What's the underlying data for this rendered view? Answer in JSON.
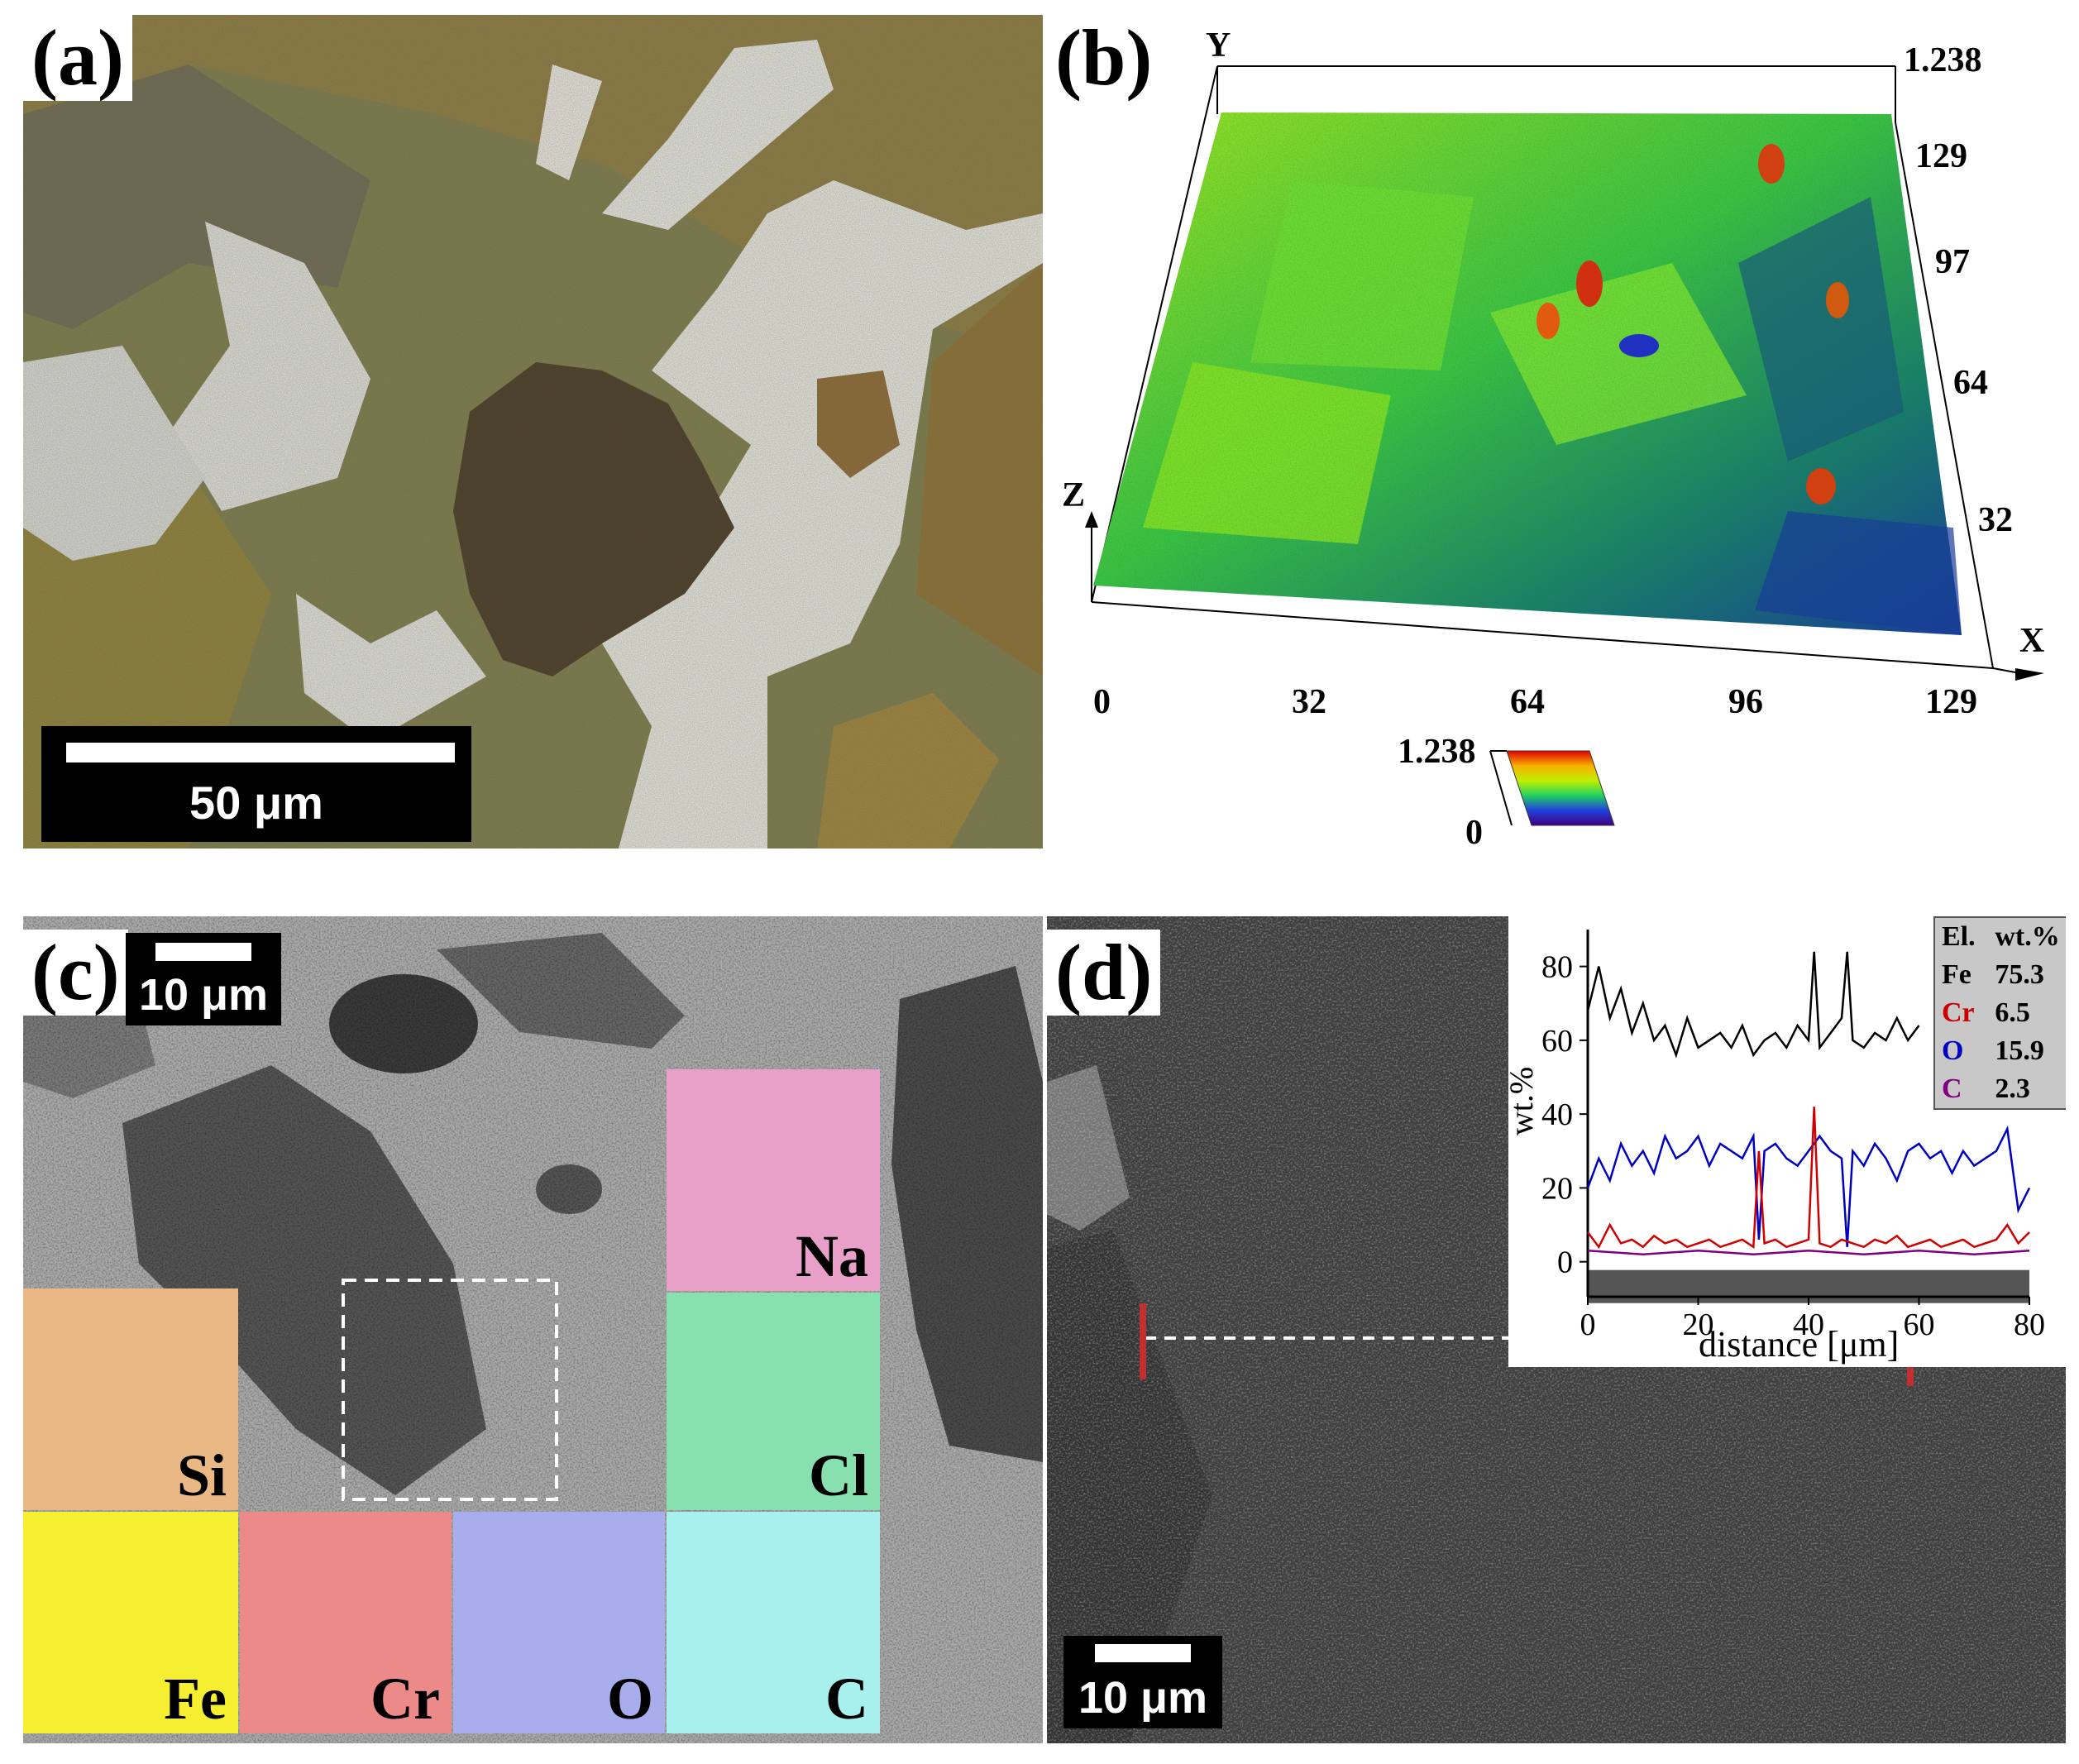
{
  "panels": {
    "a": {
      "label": "(a)",
      "scale_bar": "50 μm"
    },
    "b": {
      "label": "(b)",
      "axis_y_letter": "Y",
      "axis_z_letter": "Z",
      "axis_x_letter": "X",
      "top_value": "1.238",
      "x_ticks": [
        "0",
        "32",
        "64",
        "96",
        "129"
      ],
      "y_ticks": [
        "129",
        "97",
        "64",
        "32"
      ],
      "colorbar_max": "1.238",
      "colorbar_min": "0"
    },
    "c": {
      "label": "(c)",
      "scale_bar": "10 μm",
      "maps": [
        "Na",
        "Si",
        "Cl",
        "Fe",
        "Cr",
        "O",
        "C"
      ]
    },
    "d": {
      "label": "(d)",
      "scale_bar": "10 μm",
      "table": {
        "headers": [
          "El.",
          "wt.%"
        ],
        "rows": [
          {
            "element": "Fe",
            "value": "75.3",
            "color": "#000000"
          },
          {
            "element": "Cr",
            "value": "6.5",
            "color": "#d00000"
          },
          {
            "element": "O",
            "value": "15.9",
            "color": "#0000c0"
          },
          {
            "element": "C",
            "value": "2.3",
            "color": "#800080"
          }
        ]
      }
    }
  },
  "chart_data": {
    "type": "line",
    "xlabel": "distance [μm]",
    "ylabel": "wt.%",
    "xlim": [
      0,
      80
    ],
    "ylim": [
      -5,
      90
    ],
    "x_ticks": [
      0,
      20,
      40,
      60,
      80
    ],
    "y_ticks": [
      0,
      20,
      40,
      60,
      80
    ],
    "series": [
      {
        "color": "#000000",
        "x": [
          0,
          2,
          4,
          6,
          8,
          10,
          12,
          14,
          16,
          18,
          20,
          22,
          24,
          26,
          28,
          30,
          32,
          34,
          36,
          38,
          40,
          41,
          42,
          44,
          46,
          47,
          48,
          50,
          52,
          54,
          56,
          58,
          60
        ],
        "values": [
          68,
          80,
          66,
          74,
          62,
          70,
          60,
          64,
          56,
          66,
          58,
          60,
          62,
          58,
          64,
          56,
          60,
          62,
          58,
          64,
          60,
          84,
          58,
          62,
          66,
          84,
          60,
          58,
          62,
          60,
          66,
          60,
          64
        ]
      },
      {
        "color": "#0000c0",
        "x": [
          0,
          2,
          4,
          6,
          8,
          10,
          12,
          14,
          16,
          18,
          20,
          22,
          24,
          26,
          28,
          30,
          31,
          32,
          34,
          36,
          38,
          40,
          42,
          44,
          46,
          47,
          48,
          50,
          52,
          54,
          56,
          58,
          60,
          62,
          64,
          66,
          68,
          70,
          72,
          74,
          76,
          78,
          80
        ],
        "values": [
          20,
          28,
          22,
          32,
          26,
          30,
          24,
          34,
          28,
          30,
          34,
          26,
          32,
          30,
          28,
          34,
          6,
          30,
          32,
          28,
          26,
          30,
          34,
          30,
          28,
          4,
          30,
          26,
          32,
          28,
          22,
          30,
          32,
          28,
          30,
          24,
          30,
          26,
          28,
          30,
          36,
          14,
          20
        ]
      },
      {
        "color": "#d00000",
        "x": [
          0,
          2,
          4,
          6,
          8,
          10,
          12,
          14,
          16,
          18,
          20,
          22,
          24,
          26,
          28,
          30,
          31,
          32,
          34,
          36,
          38,
          40,
          41,
          42,
          44,
          46,
          48,
          50,
          52,
          54,
          56,
          58,
          60,
          62,
          64,
          66,
          68,
          70,
          72,
          74,
          76,
          78,
          80
        ],
        "values": [
          8,
          4,
          10,
          5,
          6,
          4,
          7,
          5,
          6,
          4,
          5,
          6,
          4,
          5,
          6,
          4,
          30,
          5,
          6,
          4,
          5,
          6,
          42,
          5,
          4,
          6,
          5,
          4,
          6,
          5,
          7,
          4,
          5,
          6,
          4,
          5,
          6,
          4,
          5,
          6,
          10,
          5,
          8
        ]
      },
      {
        "color": "#800080",
        "x": [
          0,
          10,
          20,
          30,
          40,
          50,
          60,
          70,
          80
        ],
        "values": [
          3,
          2,
          3,
          2,
          3,
          2,
          3,
          2,
          3
        ]
      }
    ]
  }
}
